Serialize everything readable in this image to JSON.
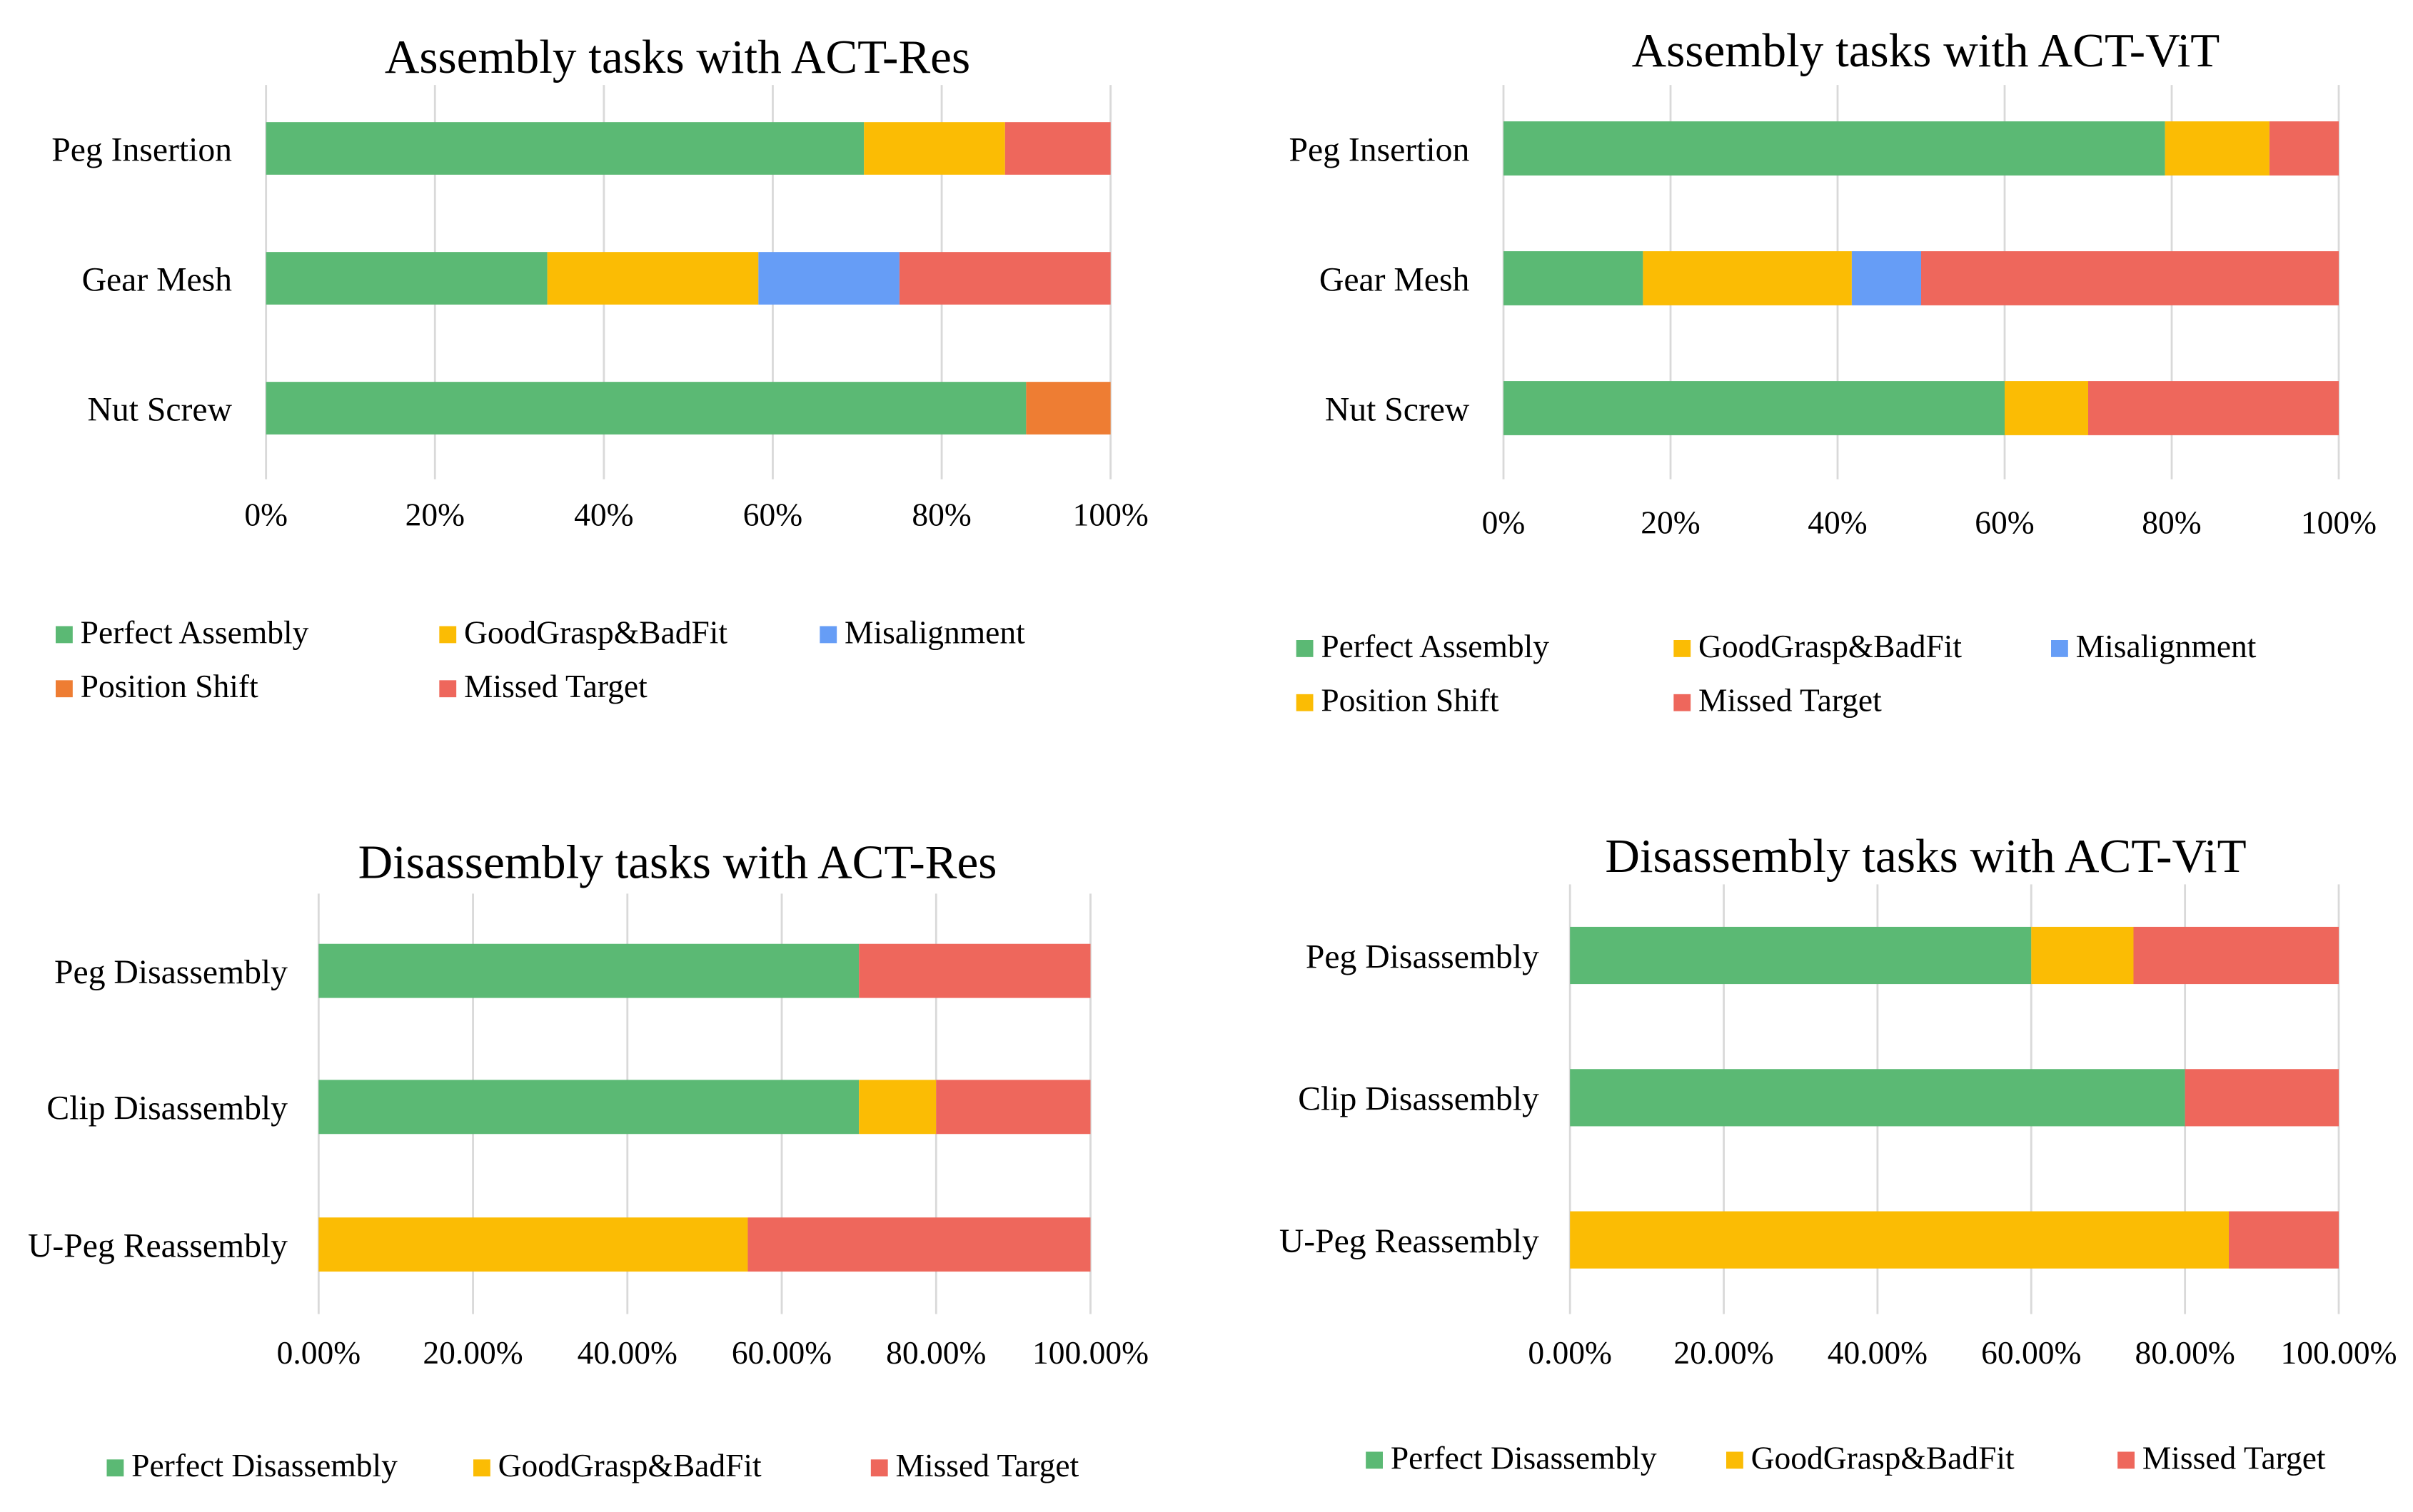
{
  "colors": {
    "green": "#5BB974",
    "yellow": "#FBBC04",
    "blue": "#669DF6",
    "orange": "#EE7D33",
    "red": "#EE675C"
  },
  "chart_data": [
    {
      "type": "bar",
      "orientation": "horizontal",
      "stacked": "percent",
      "title": "Assembly tasks with ACT-Res",
      "categories": [
        "Peg Insertion",
        "Gear Mesh",
        "Nut Screw"
      ],
      "xlim": [
        0,
        100
      ],
      "xticks": [
        "0%",
        "20%",
        "40%",
        "60%",
        "80%",
        "100%"
      ],
      "grid": true,
      "legend_position": "bottom",
      "series": [
        {
          "name": "Perfect Assembly",
          "color": "#5BB974",
          "values": [
            70.8,
            33.3,
            90
          ]
        },
        {
          "name": "GoodGrasp&BadFit",
          "color": "#FBBC04",
          "values": [
            16.7,
            25,
            0
          ]
        },
        {
          "name": "Misalignment",
          "color": "#669DF6",
          "values": [
            0,
            16.7,
            0
          ]
        },
        {
          "name": "Position Shift",
          "color": "#EE7D33",
          "values": [
            0,
            0,
            10
          ]
        },
        {
          "name": "Missed Target",
          "color": "#EE675C",
          "values": [
            12.5,
            25,
            0
          ]
        }
      ]
    },
    {
      "type": "bar",
      "orientation": "horizontal",
      "stacked": "percent",
      "title": "Assembly tasks with ACT-ViT",
      "categories": [
        "Peg Insertion",
        "Gear Mesh",
        "Nut Screw"
      ],
      "xlim": [
        0,
        100
      ],
      "xticks": [
        "0%",
        "20%",
        "40%",
        "60%",
        "80%",
        "100%"
      ],
      "grid": true,
      "legend_position": "bottom",
      "series": [
        {
          "name": "Perfect Assembly",
          "color": "#5BB974",
          "values": [
            79.2,
            16.7,
            60
          ]
        },
        {
          "name": "GoodGrasp&BadFit",
          "color": "#FBBC04",
          "values": [
            12.5,
            25,
            0
          ]
        },
        {
          "name": "Misalignment",
          "color": "#669DF6",
          "values": [
            0,
            8.3,
            0
          ]
        },
        {
          "name": "Position Shift",
          "color": "#FBBC04",
          "values": [
            0,
            0,
            10
          ]
        },
        {
          "name": "Missed Target",
          "color": "#EE675C",
          "values": [
            8.3,
            50,
            30
          ]
        }
      ]
    },
    {
      "type": "bar",
      "orientation": "horizontal",
      "stacked": "percent",
      "title": "Disassembly tasks with ACT-Res",
      "categories": [
        "Peg Disassembly",
        "Clip Disassembly",
        "U-Peg Reassembly"
      ],
      "xlim": [
        0,
        100
      ],
      "xticks": [
        "0.00%",
        "20.00%",
        "40.00%",
        "60.00%",
        "80.00%",
        "100.00%"
      ],
      "grid": true,
      "legend_position": "bottom",
      "series": [
        {
          "name": "Perfect Disassembly",
          "color": "#5BB974",
          "values": [
            70,
            70,
            0
          ]
        },
        {
          "name": "GoodGrasp&BadFit",
          "color": "#FBBC04",
          "values": [
            0,
            10,
            55.6
          ]
        },
        {
          "name": "Missed Target",
          "color": "#EE675C",
          "values": [
            30,
            20,
            44.4
          ]
        }
      ]
    },
    {
      "type": "bar",
      "orientation": "horizontal",
      "stacked": "percent",
      "title": "Disassembly tasks with ACT-ViT",
      "categories": [
        "Peg Disassembly",
        "Clip Disassembly",
        "U-Peg Reassembly"
      ],
      "xlim": [
        0,
        100
      ],
      "xticks": [
        "0.00%",
        "20.00%",
        "40.00%",
        "60.00%",
        "80.00%",
        "100.00%"
      ],
      "grid": true,
      "legend_position": "bottom",
      "series": [
        {
          "name": "Perfect Disassembly",
          "color": "#5BB974",
          "values": [
            60,
            80,
            0
          ]
        },
        {
          "name": "GoodGrasp&BadFit",
          "color": "#FBBC04",
          "values": [
            13.3,
            0,
            85.7
          ]
        },
        {
          "name": "Missed Target",
          "color": "#EE675C",
          "values": [
            26.7,
            20,
            14.3
          ]
        }
      ]
    }
  ]
}
